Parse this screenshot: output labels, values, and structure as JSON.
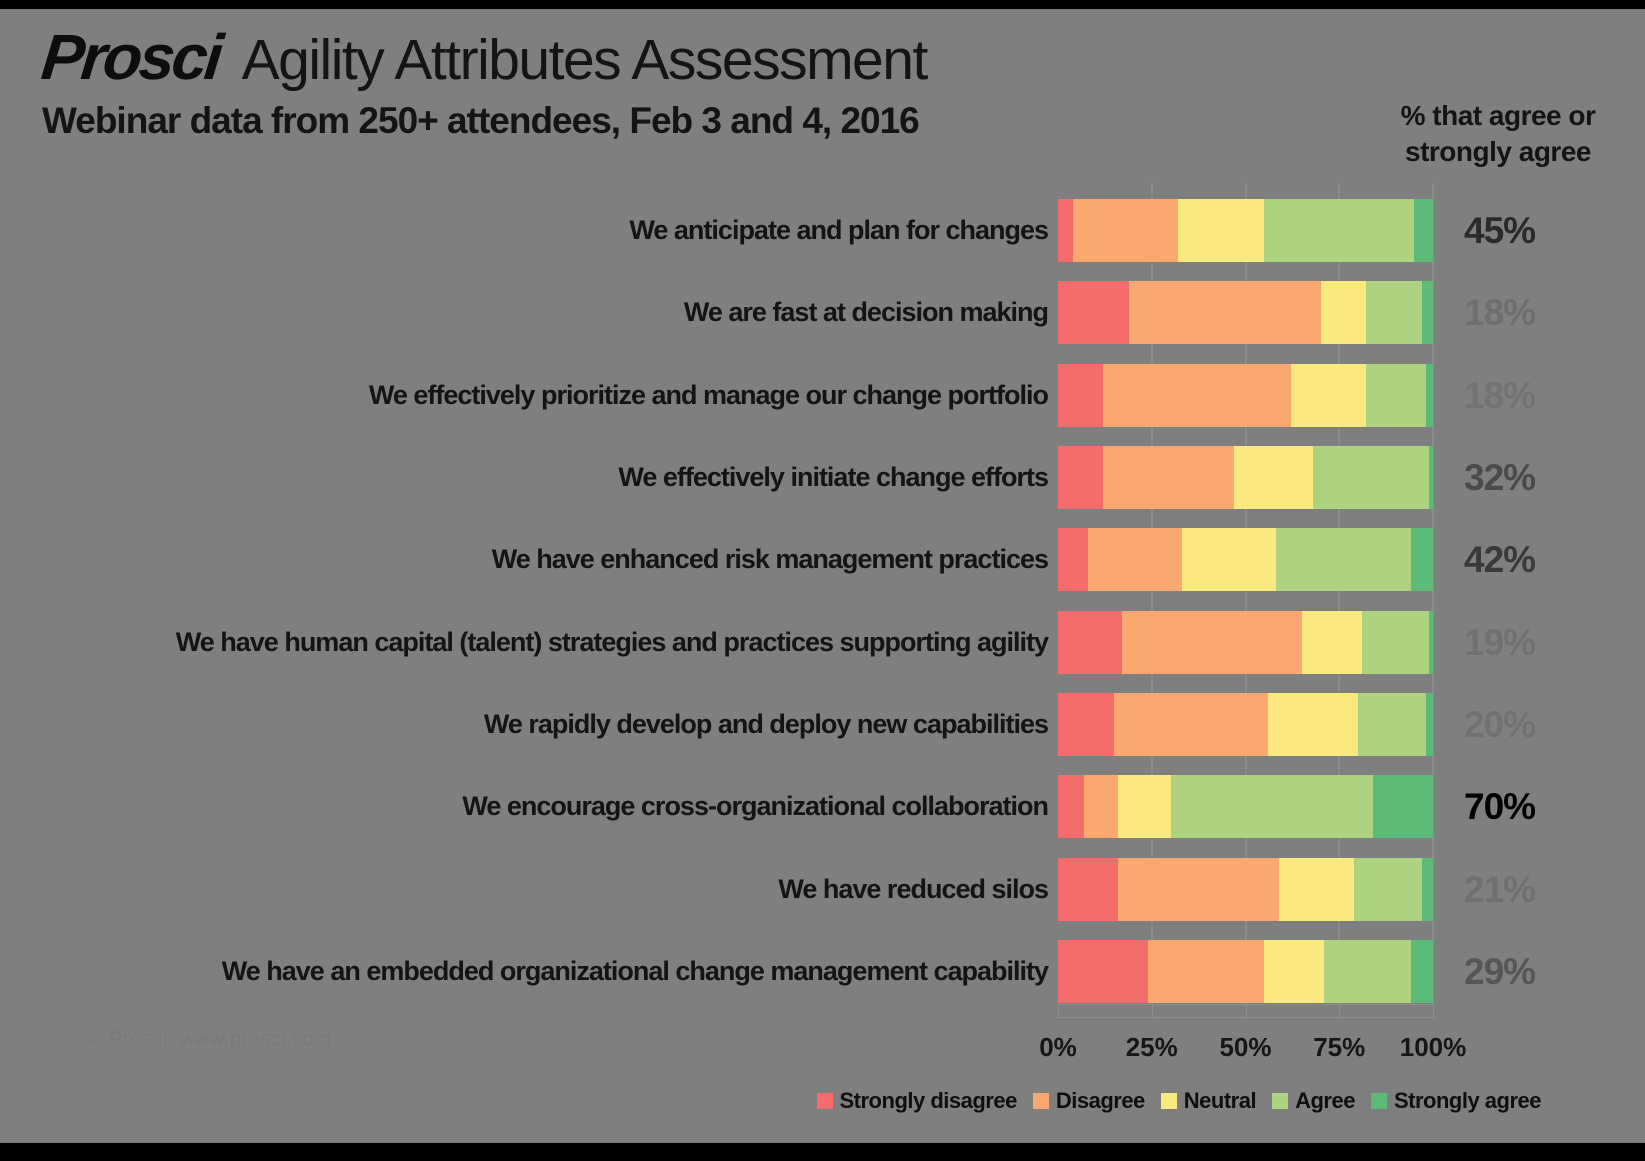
{
  "title": {
    "logo": "Prosci",
    "main": "Agility Attributes Assessment"
  },
  "subtitle": "Webinar data from 250+ attendees, Feb 3 and 4, 2016",
  "right_header": "% that agree or strongly agree",
  "footer_note": "© Prosci. www.prosci.com",
  "colors": {
    "background": "#7f7f7f",
    "strongly_disagree": "#F56C6C",
    "disagree": "#F9A870",
    "neutral": "#FAE97F",
    "agree": "#ADD381",
    "strongly_agree": "#5CBB79",
    "gridline": "#8b8b8b",
    "text": "#141414"
  },
  "chart_data": {
    "type": "bar",
    "orientation": "horizontal",
    "stacked": true,
    "title": "Agility Attributes Assessment",
    "subtitle": "Webinar data from 250+ attendees, Feb 3 and 4, 2016",
    "xlabel": "",
    "ylabel": "",
    "xlim": [
      0,
      100
    ],
    "x_ticks": [
      "0%",
      "25%",
      "50%",
      "75%",
      "100%"
    ],
    "grid": "vertical-major",
    "legend_position": "bottom",
    "categories": [
      "We anticipate and plan for changes",
      "We are fast at decision making",
      "We effectively prioritize and manage our change portfolio",
      "We effectively initiate change efforts",
      "We have enhanced risk management practices",
      "We have human capital (talent) strategies and practices supporting agility",
      "We rapidly develop and deploy new capabilities",
      "We encourage cross-organizational collaboration",
      "We have reduced silos",
      "We have an embedded organizational change management capability"
    ],
    "series": [
      {
        "name": "Strongly disagree",
        "color": "#F56C6C",
        "values": [
          4,
          19,
          12,
          12,
          8,
          17,
          15,
          7,
          16,
          24
        ]
      },
      {
        "name": "Disagree",
        "color": "#F9A870",
        "values": [
          28,
          51,
          50,
          35,
          25,
          48,
          41,
          9,
          43,
          31
        ]
      },
      {
        "name": "Neutral",
        "color": "#FAE97F",
        "values": [
          23,
          12,
          20,
          21,
          25,
          16,
          24,
          14,
          20,
          16
        ]
      },
      {
        "name": "Agree",
        "color": "#ADD381",
        "values": [
          40,
          15,
          16,
          31,
          36,
          18,
          18,
          54,
          18,
          23
        ]
      },
      {
        "name": "Strongly agree",
        "color": "#5CBB79",
        "values": [
          5,
          3,
          2,
          1,
          6,
          1,
          2,
          16,
          3,
          6
        ]
      }
    ],
    "agree_totals": [
      "45%",
      "18%",
      "18%",
      "32%",
      "42%",
      "19%",
      "20%",
      "70%",
      "21%",
      "29%"
    ],
    "agree_label_colors": [
      "#2a2a2a",
      "#6e6e6e",
      "#727272",
      "#4a4a4a",
      "#3a3a3a",
      "#707070",
      "#717171",
      "#000000",
      "#6f6f6f",
      "#565656"
    ]
  }
}
